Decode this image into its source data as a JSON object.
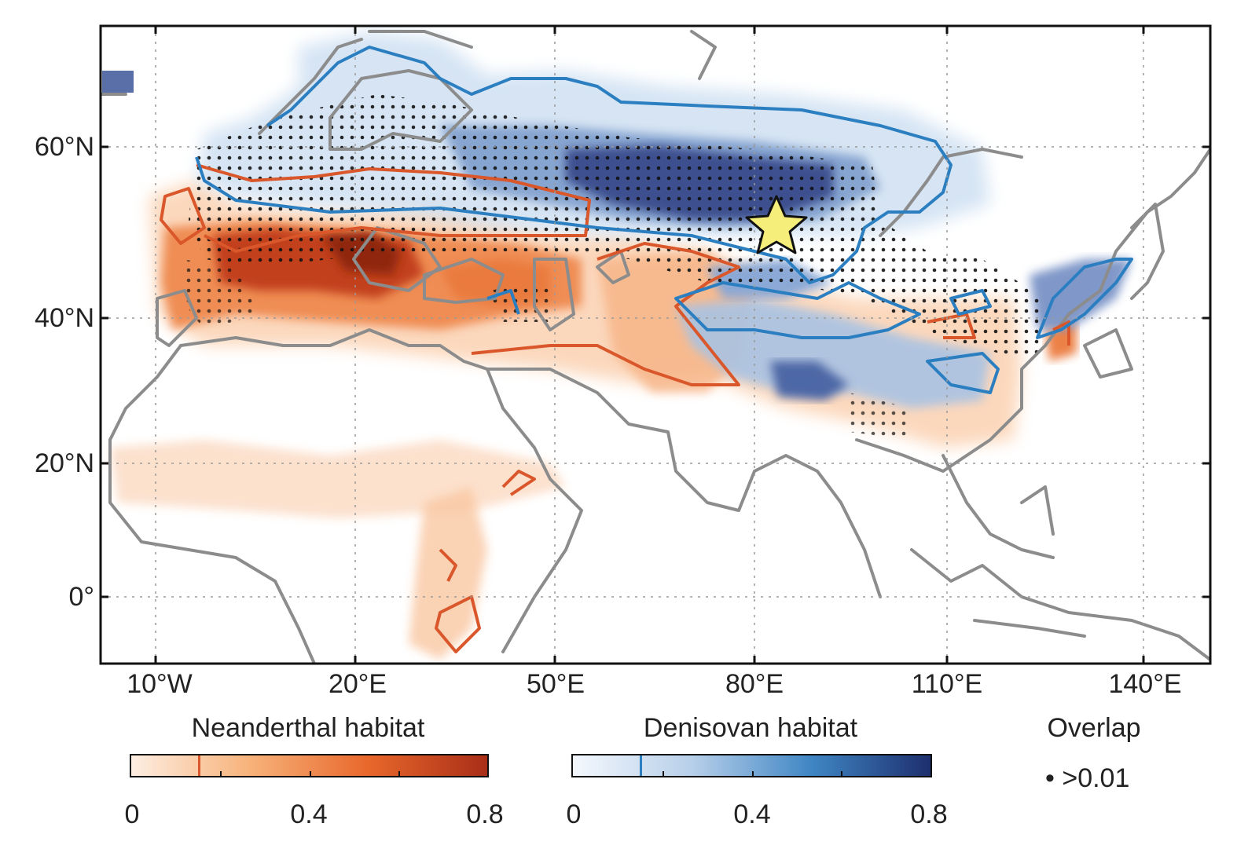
{
  "map": {
    "latitude_labels": [
      "60°N",
      "40°N",
      "20°N",
      "0°"
    ],
    "longitude_labels": [
      "10°W",
      "20°E",
      "50°E",
      "80°E",
      "110°E",
      "140°E"
    ]
  },
  "legend": {
    "neanderthal": {
      "title": "Neanderthal habitat",
      "tick_labels": [
        "0",
        "0.4",
        "0.8"
      ],
      "colors": [
        "#fdeee2",
        "#f7b27a",
        "#e8672b",
        "#a92e17"
      ],
      "contour_color": "#d9572a",
      "marker_value": 0.15
    },
    "denisovan": {
      "title": "Denisovan habitat",
      "tick_labels": [
        "0",
        "0.4",
        "0.8"
      ],
      "colors": [
        "#f4f8fd",
        "#b7cfe9",
        "#3f86c4",
        "#1e2f6e"
      ],
      "contour_color": "#2b7fc1",
      "marker_value": 0.15
    },
    "overlap": {
      "title": "Overlap",
      "item": "• >0.01"
    }
  },
  "site_marker": {
    "name": "star-marker",
    "color": "#f6ee7a"
  },
  "coastline_color": "#8c8c8c"
}
